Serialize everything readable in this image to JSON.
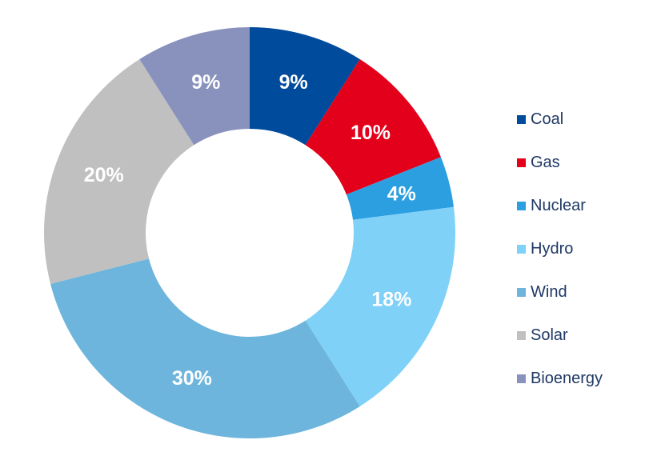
{
  "chart_data": {
    "type": "pie",
    "variant": "donut",
    "categories": [
      "Coal",
      "Gas",
      "Nuclear",
      "Hydro",
      "Wind",
      "Solar",
      "Bioenergy"
    ],
    "values": [
      9,
      10,
      4,
      18,
      30,
      20,
      9
    ],
    "data_labels": [
      "9%",
      "10%",
      "4%",
      "18%",
      "30%",
      "20%",
      "9%"
    ],
    "colors": [
      "#004b9c",
      "#e3001b",
      "#2b9fe0",
      "#7fd1f7",
      "#6db5dc",
      "#c0c0c0",
      "#8892bc"
    ],
    "legend_position": "right",
    "title": ""
  }
}
